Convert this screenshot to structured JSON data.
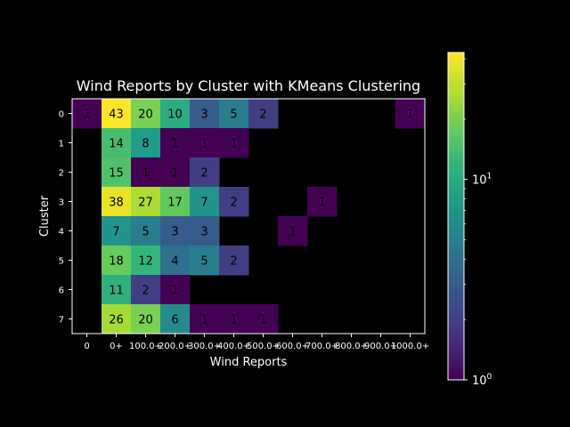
{
  "chart_data": {
    "type": "heatmap",
    "title": "Wind Reports by Cluster with KMeans Clustering",
    "xlabel": "Wind Reports",
    "ylabel": "Cluster",
    "x_categories": [
      "0",
      "0+",
      "100.0+",
      "200.0+",
      "300.0+",
      "400.0+",
      "500.0+",
      "600.0+",
      "700.0+",
      "800.0+",
      "900.0+",
      "1000.0+"
    ],
    "y_categories": [
      "0",
      "1",
      "2",
      "3",
      "4",
      "5",
      "6",
      "7"
    ],
    "values": [
      [
        1,
        43,
        20,
        10,
        3,
        5,
        2,
        0,
        0,
        0,
        0,
        1
      ],
      [
        0,
        14,
        8,
        1,
        1,
        1,
        0,
        0,
        0,
        0,
        0,
        0
      ],
      [
        0,
        15,
        1,
        1,
        2,
        0,
        0,
        0,
        0,
        0,
        0,
        0
      ],
      [
        0,
        38,
        27,
        17,
        7,
        2,
        0,
        0,
        1,
        0,
        0,
        0
      ],
      [
        0,
        7,
        5,
        3,
        3,
        0,
        0,
        1,
        0,
        0,
        0,
        0
      ],
      [
        0,
        18,
        12,
        4,
        5,
        2,
        0,
        0,
        0,
        0,
        0,
        0
      ],
      [
        0,
        11,
        2,
        1,
        0,
        0,
        0,
        0,
        0,
        0,
        0,
        0
      ],
      [
        0,
        26,
        20,
        6,
        1,
        1,
        1,
        0,
        0,
        0,
        0,
        0
      ]
    ],
    "color_scale": "log",
    "colormap": "viridis",
    "zero_color": "#000000",
    "vmin": 1,
    "vmax": 43,
    "colorbar": {
      "ticks": [
        {
          "base": "10",
          "exp": "0",
          "value": 1
        },
        {
          "base": "10",
          "exp": "1",
          "value": 10
        }
      ]
    },
    "grid": false
  }
}
